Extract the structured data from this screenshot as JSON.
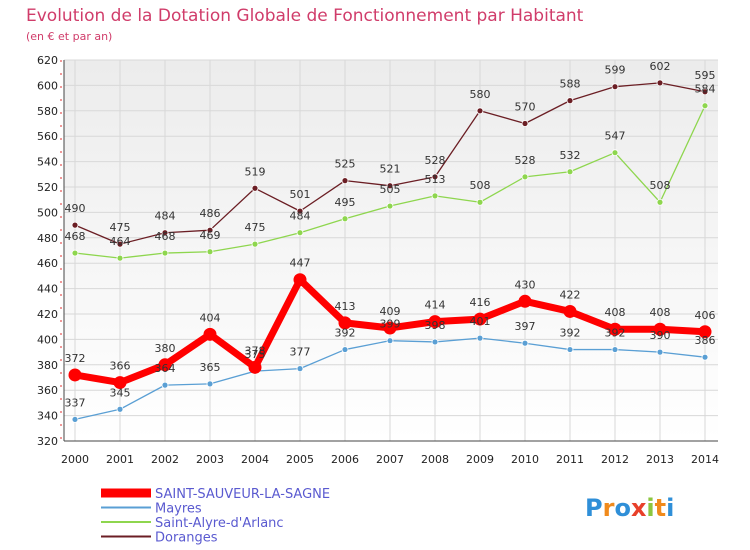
{
  "chart_data": {
    "type": "line",
    "title": "Evolution de la Dotation Globale de Fonctionnement par Habitant",
    "subtitle": "(en € et par an)",
    "xlabel": "",
    "ylabel": "",
    "ylim": [
      320,
      620
    ],
    "y_step": 20,
    "grid": true,
    "legend_position": "bottom-left",
    "x": [
      "2000",
      "2001",
      "2002",
      "2003",
      "2004",
      "2005",
      "2006",
      "2007",
      "2008",
      "2009",
      "2010",
      "2011",
      "2012",
      "2013",
      "2014"
    ],
    "series": [
      {
        "name": "SAINT-SAUVEUR-LA-SAGNE",
        "color": "#ff0000",
        "values": [
          372,
          366,
          380,
          404,
          378,
          447,
          413,
          409,
          414,
          416,
          430,
          422,
          408,
          408,
          406
        ]
      },
      {
        "name": "Mayres",
        "color": "#5a9fd4",
        "values": [
          337,
          345,
          364,
          365,
          375,
          377,
          392,
          399,
          398,
          401,
          397,
          392,
          392,
          390,
          386
        ]
      },
      {
        "name": "Saint-Alyre-d'Arlanc",
        "color": "#8ed64e",
        "values": [
          468,
          464,
          468,
          469,
          475,
          484,
          495,
          505,
          513,
          508,
          528,
          532,
          547,
          508,
          584
        ]
      },
      {
        "name": "Doranges",
        "color": "#6b1e24",
        "values": [
          490,
          475,
          484,
          486,
          519,
          501,
          525,
          521,
          528,
          580,
          570,
          588,
          599,
          602,
          595
        ]
      }
    ]
  },
  "logo": {
    "text": "Proxiti"
  }
}
